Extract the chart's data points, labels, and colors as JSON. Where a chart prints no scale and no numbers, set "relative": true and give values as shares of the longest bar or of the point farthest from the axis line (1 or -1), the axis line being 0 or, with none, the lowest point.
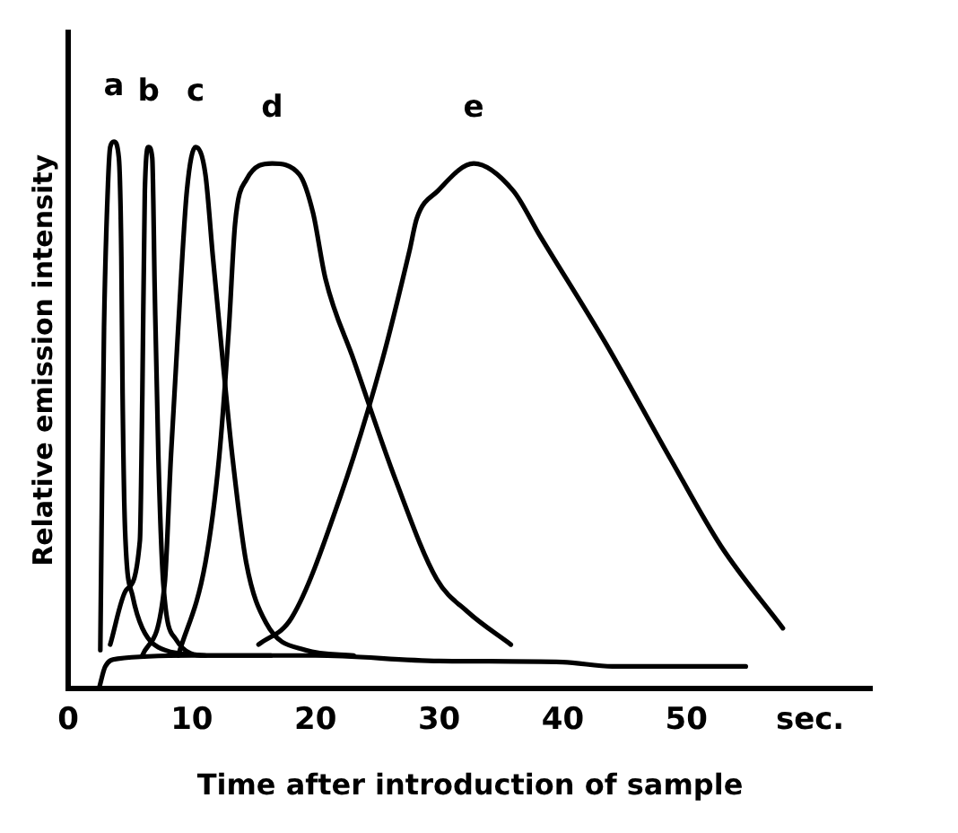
{
  "chart_data": {
    "type": "line",
    "relative": true,
    "xlabel": "Time after introduction of sample",
    "ylabel": "Relative emission intensity",
    "xlim": [
      0,
      65
    ],
    "xticks": [
      0,
      10,
      20,
      30,
      40,
      50,
      {
        "value": 60,
        "label": "sec."
      }
    ],
    "tick_labels": "x",
    "grid": false,
    "legend": false,
    "marker": "none",
    "line_style": "solid",
    "series": [
      {
        "name": "a",
        "color": "#000000",
        "x": [
          2.6,
          2.7,
          2.9,
          3.2,
          3.4,
          3.7,
          4.1,
          4.3,
          4.4,
          4.6,
          5.2,
          6.0,
          7.8,
          11.1
        ],
        "values": [
          0.07,
          0.29,
          0.66,
          0.91,
          0.99,
          1.0,
          0.97,
          0.79,
          0.54,
          0.29,
          0.17,
          0.11,
          0.07,
          0.06
        ]
      },
      {
        "name": "b",
        "color": "#000000",
        "x": [
          3.4,
          4.7,
          5.8,
          6.0,
          6.2,
          6.5,
          6.8,
          7.0,
          7.3,
          7.7,
          8.7,
          11.1,
          16.4
        ],
        "values": [
          0.08,
          0.18,
          0.27,
          0.54,
          0.91,
          0.99,
          0.97,
          0.73,
          0.42,
          0.19,
          0.09,
          0.06,
          0.06
        ]
      },
      {
        "name": "c",
        "color": "#000000",
        "x": [
          6.0,
          7.8,
          8.3,
          8.9,
          9.6,
          10.3,
          11.1,
          11.7,
          12.5,
          13.3,
          14.4,
          16.0,
          19.2,
          23.1
        ],
        "values": [
          0.06,
          0.19,
          0.42,
          0.66,
          0.91,
          0.99,
          0.94,
          0.79,
          0.6,
          0.42,
          0.23,
          0.12,
          0.07,
          0.06
        ]
      },
      {
        "name": "d",
        "color": "#000000",
        "x": [
          8.9,
          11.1,
          12.2,
          13.0,
          13.5,
          14.4,
          16.5,
          18.7,
          19.8,
          20.8,
          23.1,
          26.5,
          29.8,
          32.3,
          35.8
        ],
        "values": [
          0.06,
          0.23,
          0.42,
          0.66,
          0.85,
          0.93,
          0.96,
          0.94,
          0.87,
          0.75,
          0.6,
          0.38,
          0.2,
          0.14,
          0.08
        ]
      },
      {
        "name": "e",
        "color": "#000000",
        "x": [
          15.4,
          18.1,
          22.0,
          25.4,
          27.6,
          28.2,
          29.9,
          32.8,
          36.0,
          38.1,
          43.5,
          48.7,
          52.8,
          57.8
        ],
        "values": [
          0.08,
          0.13,
          0.35,
          0.6,
          0.8,
          0.86,
          0.91,
          0.96,
          0.91,
          0.83,
          0.63,
          0.42,
          0.26,
          0.11
        ]
      },
      {
        "color": "#000000",
        "x": [
          2.5,
          3.0,
          4.0,
          10,
          20,
          30,
          40,
          44,
          54.8
        ],
        "values": [
          0,
          0.04,
          0.054,
          0.06,
          0.06,
          0.05,
          0.048,
          0.04,
          0.04
        ]
      }
    ]
  }
}
